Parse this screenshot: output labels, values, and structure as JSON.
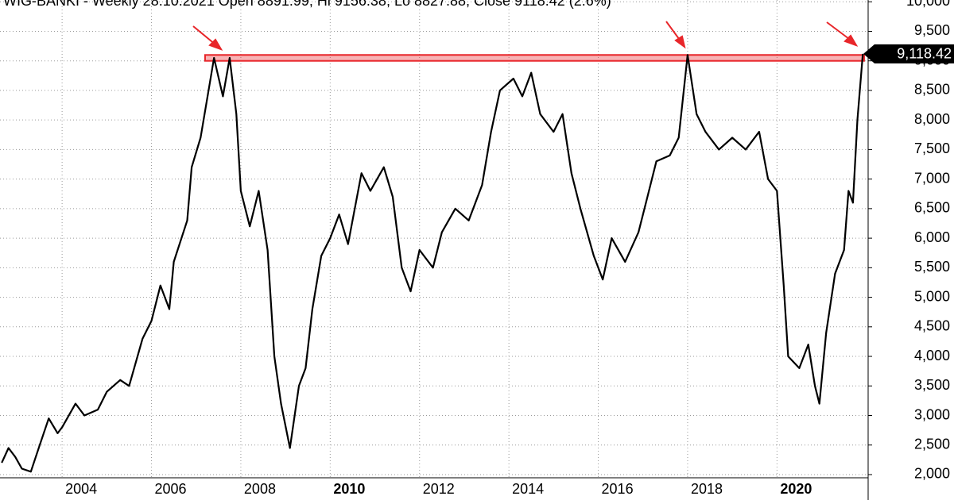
{
  "chart_data": {
    "type": "line",
    "title": "WIG-BANKI - Weekly 28.10.2021 Open 8891.99, Hi 9156.38, Lo 8827.88, Close 9118.42 (2.6%)",
    "last_label": "9,118.42",
    "color": "#000000",
    "grid": true,
    "x": [
      2002.65,
      2002.8,
      2002.95,
      2003.1,
      2003.3,
      2003.5,
      2003.7,
      2003.9,
      2004.0,
      2004.3,
      2004.5,
      2004.8,
      2005.0,
      2005.3,
      2005.5,
      2005.8,
      2006.0,
      2006.2,
      2006.4,
      2006.5,
      2006.8,
      2006.9,
      2007.1,
      2007.3,
      2007.4,
      2007.6,
      2007.75,
      2007.9,
      2008.0,
      2008.2,
      2008.4,
      2008.6,
      2008.75,
      2008.9,
      2009.1,
      2009.3,
      2009.45,
      2009.6,
      2009.8,
      2010.0,
      2010.2,
      2010.4,
      2010.7,
      2010.9,
      2011.2,
      2011.4,
      2011.6,
      2011.8,
      2012.0,
      2012.3,
      2012.5,
      2012.8,
      2013.1,
      2013.4,
      2013.6,
      2013.8,
      2014.1,
      2014.3,
      2014.5,
      2014.7,
      2015.0,
      2015.2,
      2015.4,
      2015.6,
      2015.9,
      2016.1,
      2016.3,
      2016.6,
      2016.9,
      2017.1,
      2017.3,
      2017.6,
      2017.8,
      2018.0,
      2018.2,
      2018.4,
      2018.7,
      2019.0,
      2019.3,
      2019.6,
      2019.8,
      2020.0,
      2020.15,
      2020.25,
      2020.5,
      2020.7,
      2020.85,
      2020.95,
      2021.1,
      2021.3,
      2021.5,
      2021.6,
      2021.7,
      2021.8,
      2021.92
    ],
    "values": [
      2200,
      2450,
      2300,
      2100,
      2050,
      2500,
      2950,
      2700,
      2800,
      3200,
      3000,
      3100,
      3400,
      3600,
      3500,
      4300,
      4600,
      5200,
      4800,
      5600,
      6300,
      7200,
      7700,
      8600,
      9050,
      8400,
      9050,
      8100,
      6800,
      6200,
      6800,
      5800,
      4000,
      3200,
      2450,
      3500,
      3800,
      4800,
      5700,
      6000,
      6400,
      5900,
      7100,
      6800,
      7200,
      6700,
      5500,
      5100,
      5800,
      5500,
      6100,
      6500,
      6300,
      6900,
      7800,
      8500,
      8700,
      8400,
      8800,
      8100,
      7800,
      8100,
      7100,
      6500,
      5700,
      5300,
      6000,
      5600,
      6100,
      6700,
      7300,
      7400,
      7700,
      9100,
      8100,
      7800,
      7500,
      7700,
      7500,
      7800,
      7000,
      6800,
      5200,
      4000,
      3800,
      4200,
      3500,
      3200,
      4400,
      5400,
      5800,
      6800,
      6600,
      8000,
      9118.42
    ],
    "resistance": {
      "x": [
        2007.2,
        2021.95
      ],
      "y": [
        9000,
        9100
      ],
      "color": "#e8262a"
    },
    "xlim": [
      2002.61,
      2022.04
    ],
    "xticks": [
      2004,
      2006,
      2008,
      2010,
      2012,
      2014,
      2016,
      2018,
      2020
    ],
    "ylim": [
      1570,
      10030
    ],
    "yticks": [
      {
        "value": 2000,
        "label": "2,000"
      },
      {
        "value": 2500,
        "label": "2,500"
      },
      {
        "value": 3000,
        "label": "3,000"
      },
      {
        "value": 3500,
        "label": "3,500"
      },
      {
        "value": 4000,
        "label": "4,000"
      },
      {
        "value": 4500,
        "label": "4,500"
      },
      {
        "value": 5000,
        "label": "5,000"
      },
      {
        "value": 5500,
        "label": "5,500"
      },
      {
        "value": 6000,
        "label": "6,000"
      },
      {
        "value": 6500,
        "label": "6,500"
      },
      {
        "value": 7000,
        "label": "7,000"
      },
      {
        "value": 7500,
        "label": "7,500"
      },
      {
        "value": 8000,
        "label": "8,000"
      },
      {
        "value": 8500,
        "label": "8,500"
      },
      {
        "value": 9000,
        "label": "9,000"
      },
      {
        "value": 9500,
        "label": "9,500"
      },
      {
        "value": 10000,
        "label": "10,000"
      }
    ]
  }
}
